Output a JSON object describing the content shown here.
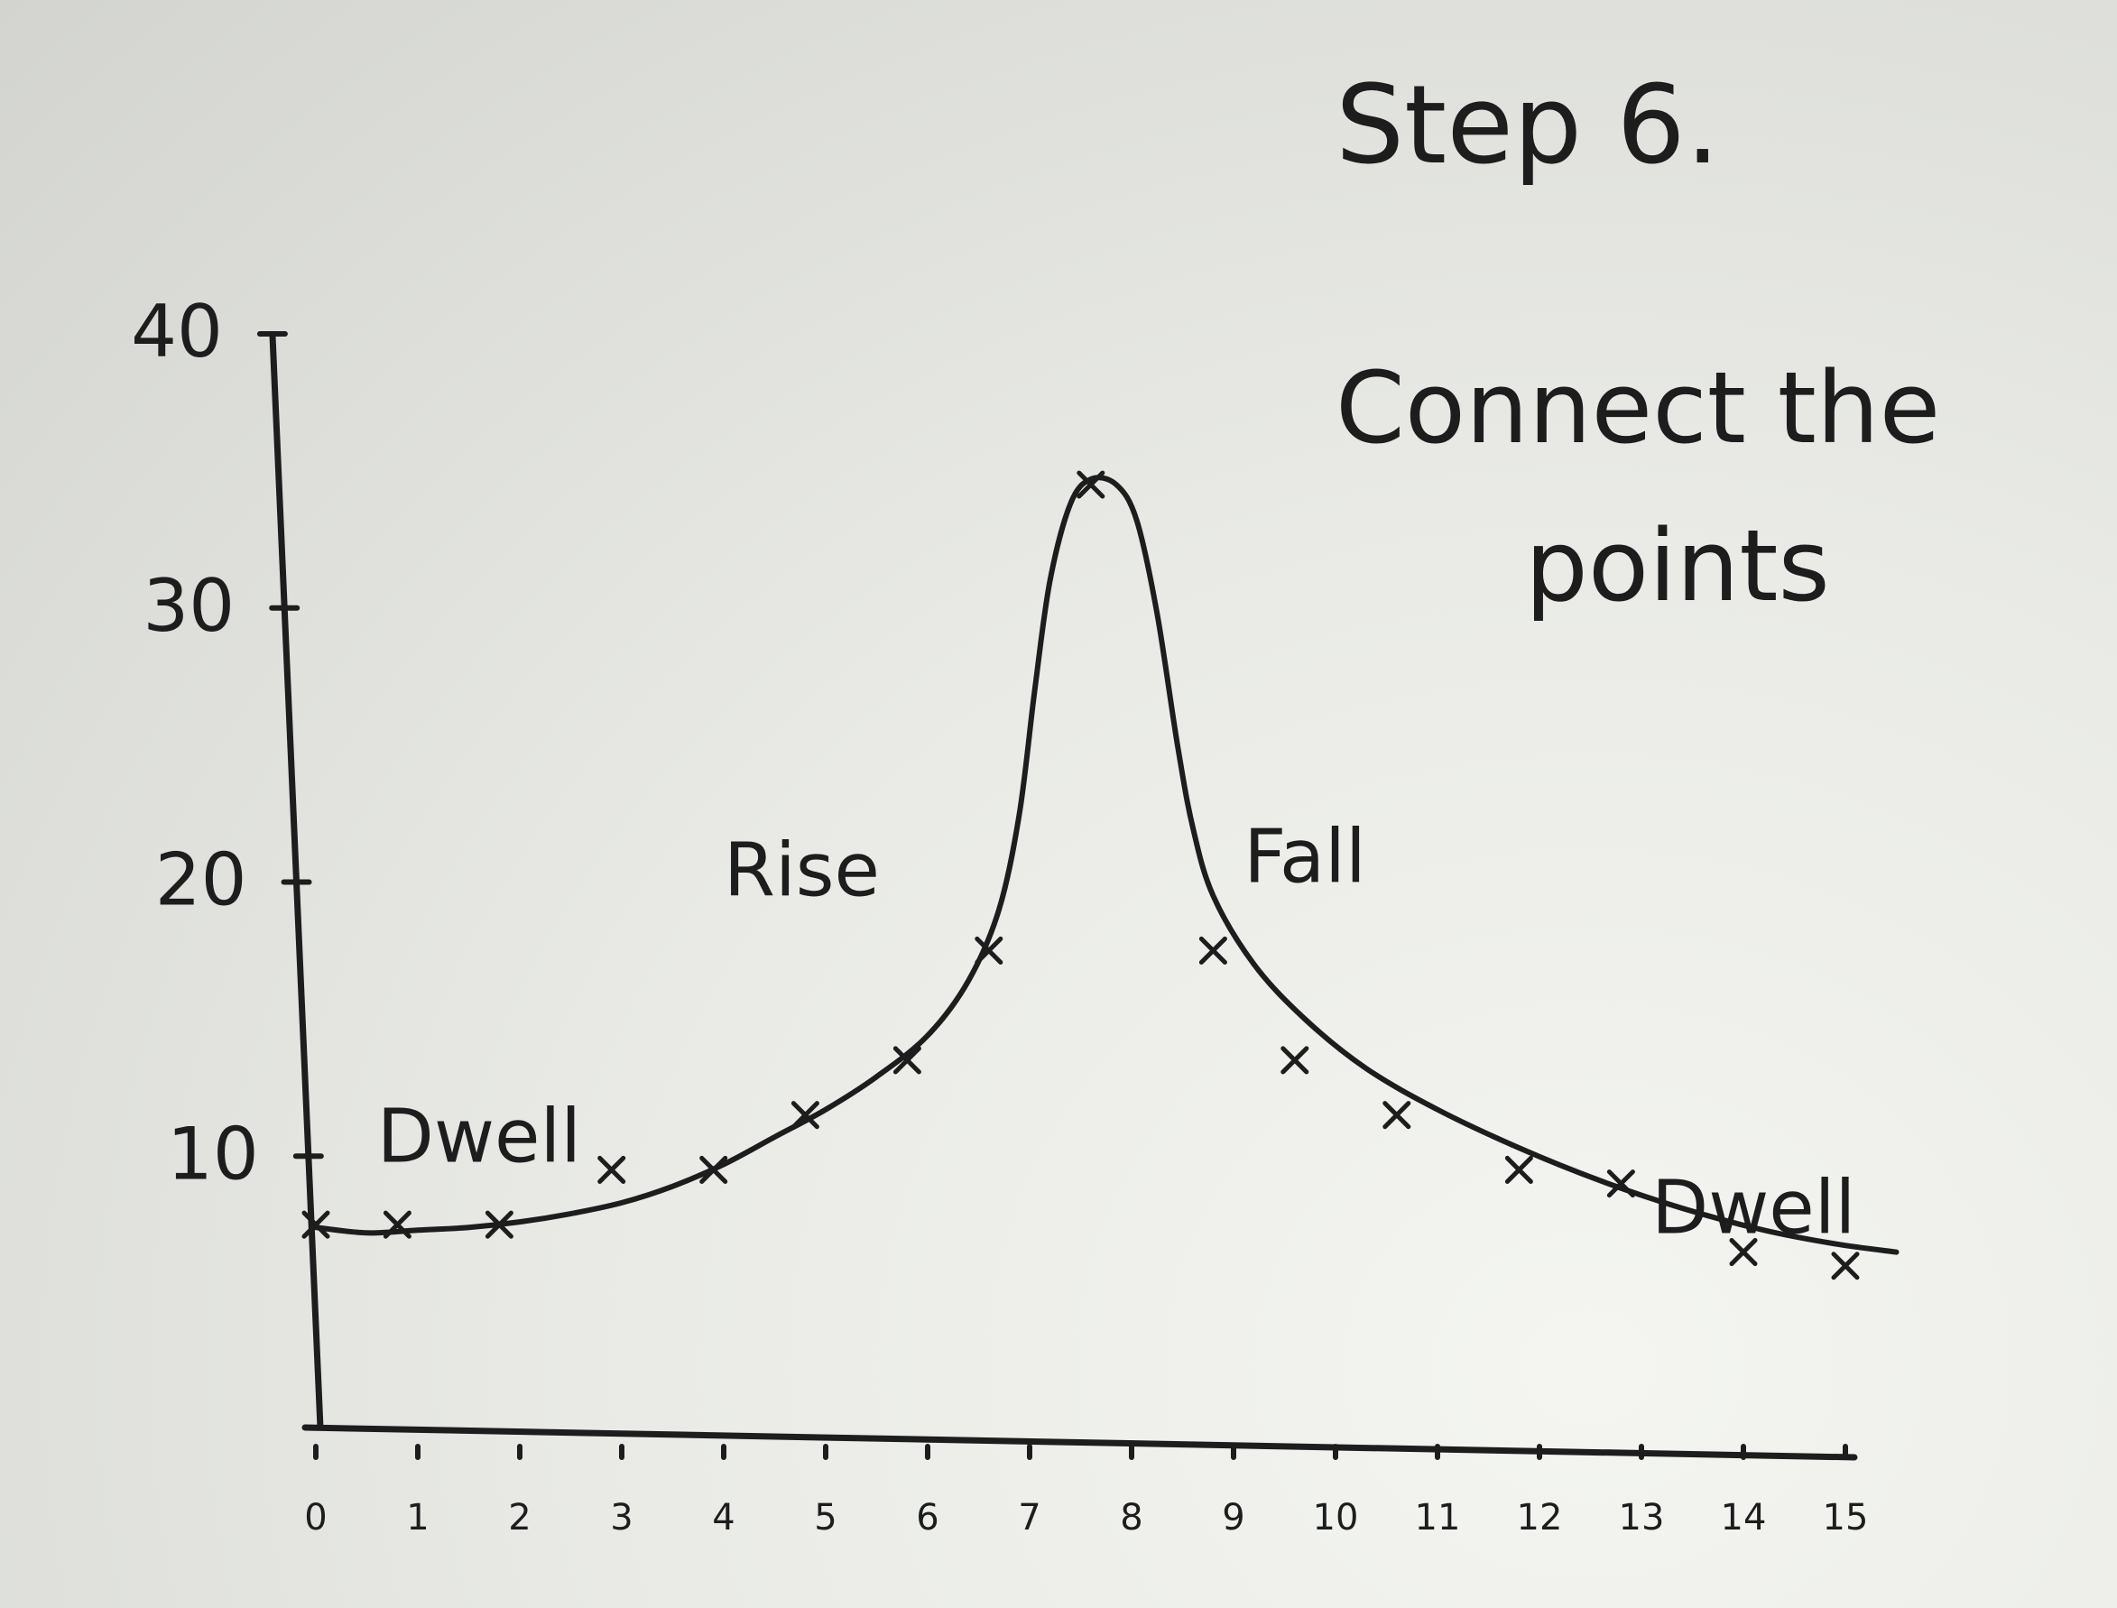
{
  "heading": {
    "step": "Step 6.",
    "instruction_line1": "Connect the",
    "instruction_line2": "points"
  },
  "ink_color": "#1d1d1d",
  "chart_data": {
    "type": "scatter",
    "title": "",
    "xlabel": "",
    "ylabel": "",
    "xlim": [
      0,
      15
    ],
    "ylim": [
      0,
      40
    ],
    "x_ticks": [
      "0",
      "1",
      "2",
      "3",
      "4",
      "5",
      "6",
      "7",
      "8",
      "9",
      "10",
      "11",
      "12",
      "13",
      "14",
      "15"
    ],
    "y_ticks": [
      "10",
      "20",
      "30",
      "40"
    ],
    "grid": false,
    "legend": "none",
    "series": [
      {
        "points": [
          {
            "x": 0,
            "y": 7.5
          },
          {
            "x": 0.8,
            "y": 7.5
          },
          {
            "x": 1.8,
            "y": 7.5
          },
          {
            "x": 2.9,
            "y": 9.5
          },
          {
            "x": 3.9,
            "y": 9.5
          },
          {
            "x": 4.8,
            "y": 11.5
          },
          {
            "x": 5.8,
            "y": 13.5
          },
          {
            "x": 6.6,
            "y": 17.5
          },
          {
            "x": 7.6,
            "y": 34.5
          },
          {
            "x": 8.8,
            "y": 17.5
          },
          {
            "x": 9.6,
            "y": 13.5
          },
          {
            "x": 10.6,
            "y": 11.5
          },
          {
            "x": 11.8,
            "y": 9.5
          },
          {
            "x": 12.8,
            "y": 9
          },
          {
            "x": 14,
            "y": 6.5
          },
          {
            "x": 15,
            "y": 6
          }
        ]
      }
    ],
    "curve": [
      {
        "x": 0,
        "y": 7.4
      },
      {
        "x": 0.5,
        "y": 7.2
      },
      {
        "x": 1,
        "y": 7.3
      },
      {
        "x": 1.5,
        "y": 7.4
      },
      {
        "x": 2,
        "y": 7.6
      },
      {
        "x": 2.5,
        "y": 7.9
      },
      {
        "x": 3,
        "y": 8.3
      },
      {
        "x": 3.5,
        "y": 8.9
      },
      {
        "x": 4,
        "y": 9.7
      },
      {
        "x": 4.5,
        "y": 10.7
      },
      {
        "x": 5,
        "y": 11.7
      },
      {
        "x": 5.5,
        "y": 12.9
      },
      {
        "x": 6,
        "y": 14.4
      },
      {
        "x": 6.4,
        "y": 16.4
      },
      {
        "x": 6.7,
        "y": 19
      },
      {
        "x": 6.9,
        "y": 22.5
      },
      {
        "x": 7.05,
        "y": 27
      },
      {
        "x": 7.2,
        "y": 31
      },
      {
        "x": 7.4,
        "y": 33.8
      },
      {
        "x": 7.6,
        "y": 34.7
      },
      {
        "x": 7.85,
        "y": 34.5
      },
      {
        "x": 8.05,
        "y": 33.2
      },
      {
        "x": 8.25,
        "y": 29.8
      },
      {
        "x": 8.45,
        "y": 25
      },
      {
        "x": 8.6,
        "y": 22
      },
      {
        "x": 8.8,
        "y": 19.5
      },
      {
        "x": 9.2,
        "y": 17
      },
      {
        "x": 9.7,
        "y": 15
      },
      {
        "x": 10.3,
        "y": 13.2
      },
      {
        "x": 11,
        "y": 11.7
      },
      {
        "x": 11.8,
        "y": 10.3
      },
      {
        "x": 12.6,
        "y": 9.1
      },
      {
        "x": 13.4,
        "y": 8.1
      },
      {
        "x": 14.2,
        "y": 7.3
      },
      {
        "x": 14.9,
        "y": 6.8
      },
      {
        "x": 15.5,
        "y": 6.5
      }
    ],
    "annotations": [
      {
        "text": "Dwell",
        "x": 0.6,
        "y": 9.8
      },
      {
        "text": "Rise",
        "x": 4,
        "y": 19.5
      },
      {
        "text": "Fall",
        "x": 9.1,
        "y": 20
      },
      {
        "text": "Dwell",
        "x": 15.1,
        "y": 7.2
      }
    ]
  }
}
